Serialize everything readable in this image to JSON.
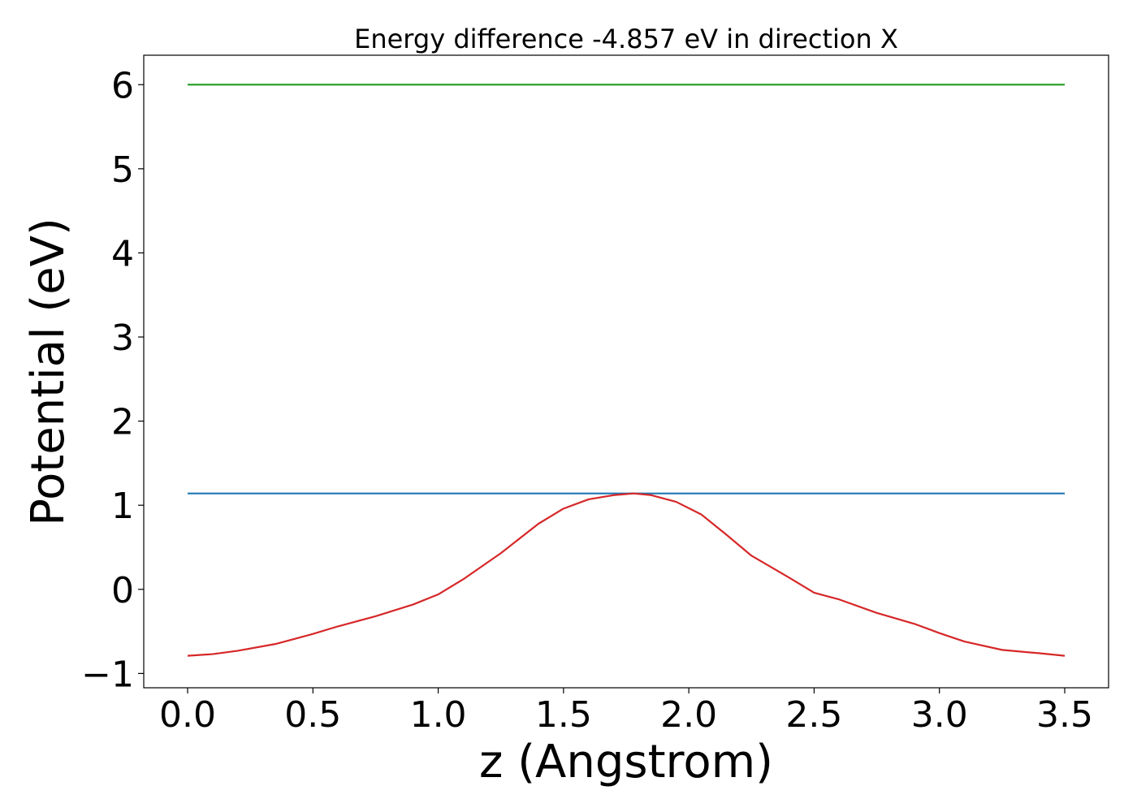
{
  "chart_data": {
    "type": "line",
    "title": "Energy difference -4.857 eV in direction X",
    "xlabel": "z (Angstrom)",
    "ylabel": "Potential (eV)",
    "xlim": [
      -0.175,
      3.675
    ],
    "ylim": [
      -1.17,
      6.35
    ],
    "xticks": [
      0.0,
      0.5,
      1.0,
      1.5,
      2.0,
      2.5,
      3.0,
      3.5
    ],
    "xtick_labels": [
      "0.0",
      "0.5",
      "1.0",
      "1.5",
      "2.0",
      "2.5",
      "3.0",
      "3.5"
    ],
    "yticks": [
      -1,
      0,
      1,
      2,
      3,
      4,
      5,
      6
    ],
    "ytick_labels": [
      "−1",
      "0",
      "1",
      "2",
      "3",
      "4",
      "5",
      "6"
    ],
    "grid": false,
    "series": [
      {
        "color": "#2ca02c",
        "x": [
          0.0,
          3.5
        ],
        "y": [
          6.0,
          6.0
        ]
      },
      {
        "color": "#1f77b4",
        "x": [
          0.0,
          3.5
        ],
        "y": [
          1.14,
          1.14
        ]
      },
      {
        "color": "#d62728",
        "x": [
          0.0,
          0.1,
          0.2,
          0.35,
          0.5,
          0.6,
          0.75,
          0.9,
          1.0,
          1.1,
          1.25,
          1.4,
          1.5,
          1.6,
          1.7,
          1.78,
          1.85,
          1.95,
          2.05,
          2.15,
          2.25,
          2.4,
          2.5,
          2.6,
          2.75,
          2.9,
          3.0,
          3.1,
          3.25,
          3.4,
          3.5
        ],
        "y": [
          -0.79,
          -0.77,
          -0.73,
          -0.65,
          -0.53,
          -0.44,
          -0.32,
          -0.18,
          -0.06,
          0.12,
          0.43,
          0.78,
          0.96,
          1.07,
          1.12,
          1.14,
          1.12,
          1.04,
          0.89,
          0.65,
          0.4,
          0.14,
          -0.04,
          -0.12,
          -0.28,
          -0.41,
          -0.52,
          -0.62,
          -0.72,
          -0.76,
          -0.79
        ]
      }
    ]
  }
}
